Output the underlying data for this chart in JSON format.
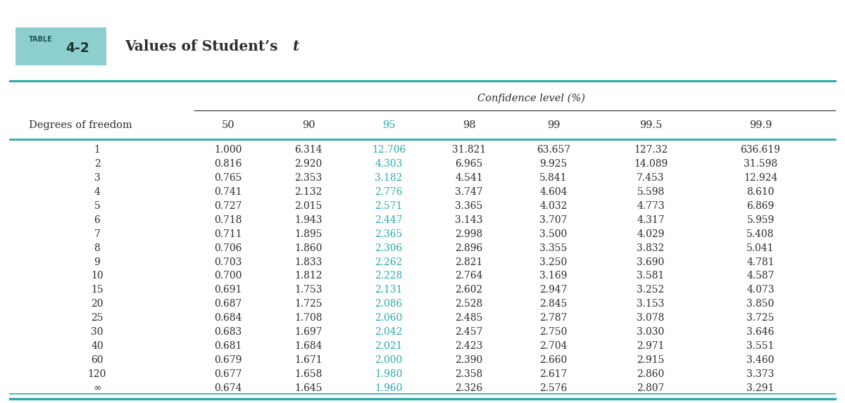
{
  "title_table_word": "TABLE",
  "title_table_num": "4-2",
  "title_text": "Values of Student’s ",
  "title_italic": "t",
  "confidence_label": "Confidence level (%)",
  "col_headers": [
    "Degrees of freedom",
    "50",
    "90",
    "95",
    "98",
    "99",
    "99.5",
    "99.9"
  ],
  "degrees_of_freedom": [
    "1",
    "2",
    "3",
    "4",
    "5",
    "6",
    "7",
    "8",
    "9",
    "10",
    "15",
    "20",
    "25",
    "30",
    "40",
    "60",
    "120",
    "∞"
  ],
  "data": [
    [
      "1.000",
      "6.314",
      "12.706",
      "31.821",
      "63.657",
      "127.32",
      "636.619"
    ],
    [
      "0.816",
      "2.920",
      "4.303",
      "6.965",
      "9.925",
      "14.089",
      "31.598"
    ],
    [
      "0.765",
      "2.353",
      "3.182",
      "4.541",
      "5.841",
      "7.453",
      "12.924"
    ],
    [
      "0.741",
      "2.132",
      "2.776",
      "3.747",
      "4.604",
      "5.598",
      "8.610"
    ],
    [
      "0.727",
      "2.015",
      "2.571",
      "3.365",
      "4.032",
      "4.773",
      "6.869"
    ],
    [
      "0.718",
      "1.943",
      "2.447",
      "3.143",
      "3.707",
      "4.317",
      "5.959"
    ],
    [
      "0.711",
      "1.895",
      "2.365",
      "2.998",
      "3.500",
      "4.029",
      "5.408"
    ],
    [
      "0.706",
      "1.860",
      "2.306",
      "2.896",
      "3.355",
      "3.832",
      "5.041"
    ],
    [
      "0.703",
      "1.833",
      "2.262",
      "2.821",
      "3.250",
      "3.690",
      "4.781"
    ],
    [
      "0.700",
      "1.812",
      "2.228",
      "2.764",
      "3.169",
      "3.581",
      "4.587"
    ],
    [
      "0.691",
      "1.753",
      "2.131",
      "2.602",
      "2.947",
      "3.252",
      "4.073"
    ],
    [
      "0.687",
      "1.725",
      "2.086",
      "2.528",
      "2.845",
      "3.153",
      "3.850"
    ],
    [
      "0.684",
      "1.708",
      "2.060",
      "2.485",
      "2.787",
      "3.078",
      "3.725"
    ],
    [
      "0.683",
      "1.697",
      "2.042",
      "2.457",
      "2.750",
      "3.030",
      "3.646"
    ],
    [
      "0.681",
      "1.684",
      "2.021",
      "2.423",
      "2.704",
      "2.971",
      "3.551"
    ],
    [
      "0.679",
      "1.671",
      "2.000",
      "2.390",
      "2.660",
      "2.915",
      "3.460"
    ],
    [
      "0.677",
      "1.658",
      "1.980",
      "2.358",
      "2.617",
      "2.860",
      "3.373"
    ],
    [
      "0.674",
      "1.645",
      "1.960",
      "2.326",
      "2.576",
      "2.807",
      "3.291"
    ]
  ],
  "teal_color": "#2BAAAD",
  "dark_color": "#2d2d2d",
  "table_label_bg": "#8DCFCF",
  "bg_color": "#FFFFFF",
  "font_size_data": 10.0,
  "font_size_header": 10.5,
  "font_size_title": 14.5,
  "badge_font_small": 7.0,
  "badge_font_large": 13.5
}
